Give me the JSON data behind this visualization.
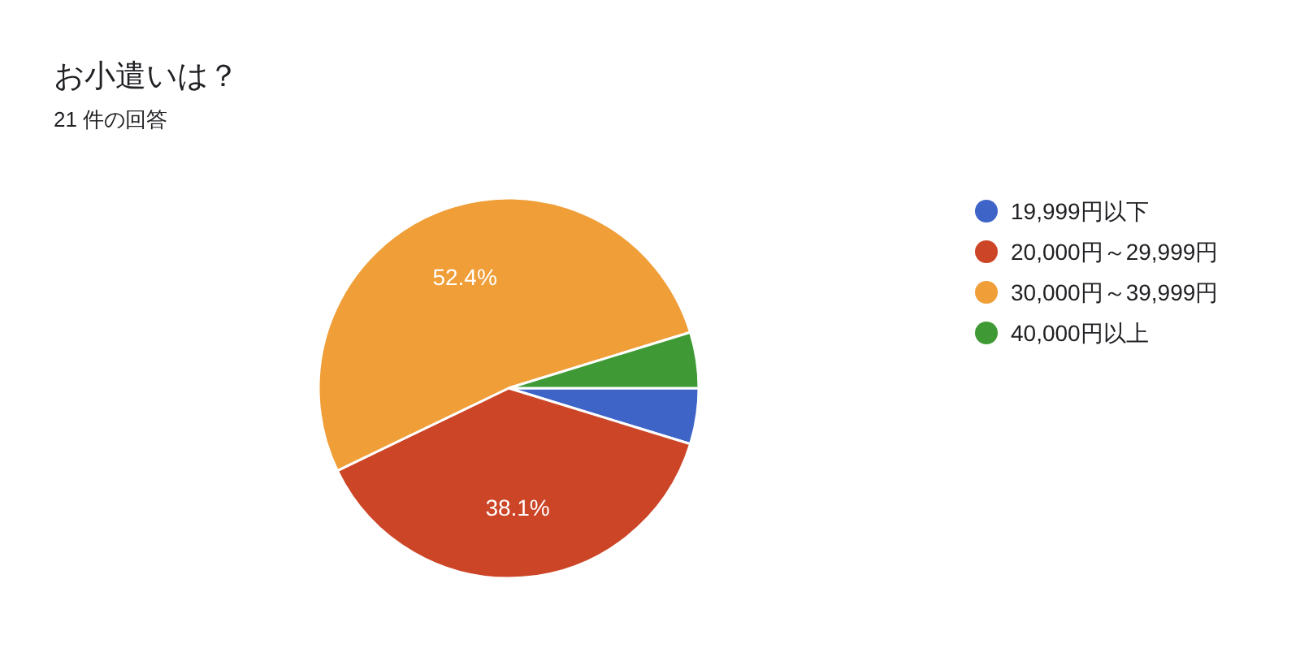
{
  "chart_data": {
    "type": "pie",
    "title": "お小遣いは？",
    "subtitle": "21 件の回答",
    "categories": [
      "19,999円以下",
      "20,000円～29,999円",
      "30,000円～39,999円",
      "40,000円以上"
    ],
    "values": [
      4.75,
      38.1,
      52.4,
      4.75
    ],
    "colors": [
      "#3f64c8",
      "#cc4527",
      "#f09e38",
      "#3f9a35"
    ],
    "value_labels": [
      null,
      "38.1%",
      "52.4%",
      null
    ],
    "legend": "right"
  }
}
